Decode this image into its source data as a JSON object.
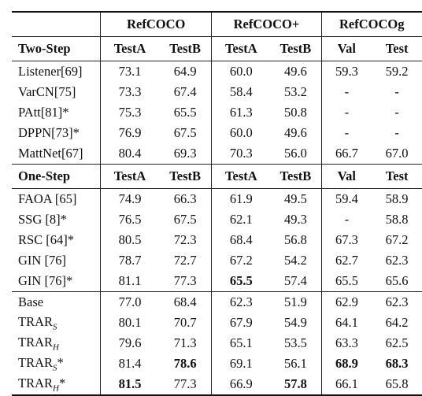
{
  "group_headers": {
    "empty": "",
    "refcoco": "RefCOCO",
    "refcocop": "RefCOCO+",
    "refcocog": "RefCOCOg"
  },
  "sections": [
    {
      "title": "Two-Step",
      "columns": [
        "TestA",
        "TestB",
        "TestA",
        "TestB",
        "Val",
        "Test"
      ],
      "rows": [
        {
          "name": "Listener[69]",
          "values": [
            "73.1",
            "64.9",
            "60.0",
            "49.6",
            "59.3",
            "59.2"
          ]
        },
        {
          "name": "VarCN[75]",
          "values": [
            "73.3",
            "67.4",
            "58.4",
            "53.2",
            "-",
            "-"
          ]
        },
        {
          "name": "PAtt[81]*",
          "values": [
            "75.3",
            "65.5",
            "61.3",
            "50.8",
            "-",
            "-"
          ]
        },
        {
          "name": "DPPN[73]*",
          "values": [
            "76.9",
            "67.5",
            "60.0",
            "49.6",
            "-",
            "-"
          ]
        },
        {
          "name": "MattNet[67]",
          "values": [
            "80.4",
            "69.3",
            "70.3",
            "56.0",
            "66.7",
            "67.0"
          ]
        }
      ]
    },
    {
      "title": "One-Step",
      "columns": [
        "TestA",
        "TestB",
        "TestA",
        "TestB",
        "Val",
        "Test"
      ],
      "rows": [
        {
          "name": "FAOA [65]",
          "values": [
            "74.9",
            "66.3",
            "61.9",
            "49.5",
            "59.4",
            "58.9"
          ]
        },
        {
          "name": "SSG [8]*",
          "values": [
            "76.5",
            "67.5",
            "62.1",
            "49.3",
            "-",
            "58.8"
          ]
        },
        {
          "name": "RSC [64]*",
          "values": [
            "80.5",
            "72.3",
            "68.4",
            "56.8",
            "67.3",
            "67.2"
          ]
        },
        {
          "name": "GIN [76]",
          "values": [
            "78.7",
            "72.7",
            "67.2",
            "54.2",
            "62.7",
            "62.3"
          ]
        },
        {
          "name": "GIN [76]*",
          "values": [
            "81.1",
            "77.3",
            "65.5",
            "57.4",
            "65.5",
            "65.6"
          ]
        }
      ]
    }
  ],
  "ours": [
    {
      "name": "Base",
      "sub": "",
      "star": "",
      "values": [
        "77.0",
        "68.4",
        "62.3",
        "51.9",
        "62.9",
        "62.3"
      ]
    },
    {
      "name": "TRAR",
      "sub": "S",
      "star": "",
      "values": [
        "80.1",
        "70.7",
        "67.9",
        "54.9",
        "64.1",
        "64.2"
      ]
    },
    {
      "name": "TRAR",
      "sub": "H",
      "star": "",
      "values": [
        "79.6",
        "71.3",
        "65.1",
        "53.5",
        "63.3",
        "62.5"
      ]
    },
    {
      "name": "TRAR",
      "sub": "S",
      "star": "*",
      "values": [
        "81.4",
        "78.6",
        "69.1",
        "56.1",
        "68.9",
        "68.3"
      ]
    },
    {
      "name": "TRAR",
      "sub": "H",
      "star": "*",
      "values": [
        "81.5",
        "77.3",
        "66.9",
        "57.8",
        "66.1",
        "65.8"
      ]
    }
  ]
}
